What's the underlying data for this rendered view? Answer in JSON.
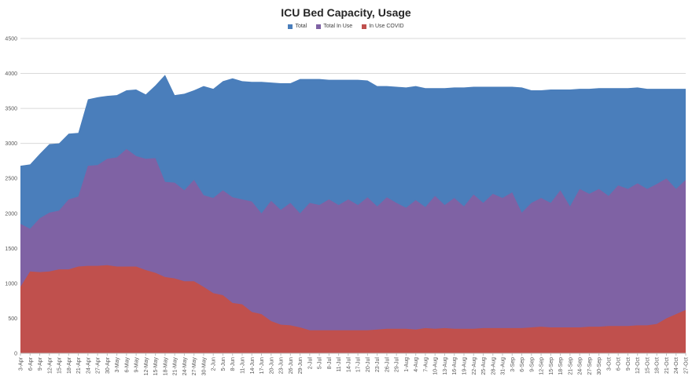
{
  "chart_data": {
    "type": "area",
    "title": "ICU Bed Capacity, Usage",
    "xlabel": "",
    "ylabel": "",
    "ylim": [
      0,
      4500
    ],
    "y_ticks": [
      0,
      500,
      1000,
      1500,
      2000,
      2500,
      3000,
      3500,
      4000,
      4500
    ],
    "grid": true,
    "legend_position": "top",
    "x_tick_labels": [
      "3-Apr",
      "6-Apr",
      "9-Apr",
      "12-Apr",
      "15-Apr",
      "18-Apr",
      "21-Apr",
      "24-Apr",
      "27-Apr",
      "30-Apr",
      "3-May",
      "6-May",
      "9-May",
      "12-May",
      "15-May",
      "18-May",
      "21-May",
      "24-May",
      "27-May",
      "30-May",
      "2-Jun",
      "5-Jun",
      "8-Jun",
      "11-Jun",
      "14-Jun",
      "17-Jun",
      "20-Jun",
      "23-Jun",
      "26-Jun",
      "29-Jun",
      "2-Jul",
      "5-Jul",
      "8-Jul",
      "11-Jul",
      "14-Jul",
      "17-Jul",
      "20-Jul",
      "23-Jul",
      "26-Jul",
      "29-Jul",
      "1-Aug",
      "4-Aug",
      "7-Aug",
      "10-Aug",
      "13-Aug",
      "16-Aug",
      "19-Aug",
      "22-Aug",
      "25-Aug",
      "28-Aug",
      "31-Aug",
      "3-Sep",
      "6-Sep",
      "9-Sep",
      "12-Sep",
      "15-Sep",
      "18-Sep",
      "21-Sep",
      "24-Sep",
      "27-Sep",
      "30-Sep",
      "3-Oct",
      "6-Oct",
      "9-Oct",
      "12-Oct",
      "15-Oct",
      "18-Oct",
      "21-Oct",
      "24-Oct",
      "27-Oct"
    ],
    "series": [
      {
        "name": "Total",
        "color": "#4a7ebb",
        "values": [
          2680,
          2700,
          2850,
          2990,
          3000,
          3140,
          3150,
          3630,
          3660,
          3680,
          3690,
          3760,
          3770,
          3700,
          3830,
          3980,
          3690,
          3710,
          3760,
          3820,
          3780,
          3890,
          3930,
          3890,
          3880,
          3880,
          3870,
          3860,
          3860,
          3920,
          3920,
          3920,
          3910,
          3910,
          3910,
          3910,
          3900,
          3820,
          3820,
          3810,
          3800,
          3820,
          3790,
          3790,
          3790,
          3800,
          3800,
          3810,
          3810,
          3810,
          3810,
          3810,
          3800,
          3760,
          3760,
          3770,
          3770,
          3770,
          3780,
          3780,
          3790,
          3790,
          3790,
          3790,
          3800,
          3780,
          3780,
          3780,
          3780,
          3780
        ]
      },
      {
        "name": "Total In Use",
        "color": "#7f62a4",
        "values": [
          1850,
          1780,
          1930,
          2010,
          2040,
          2200,
          2240,
          2680,
          2690,
          2780,
          2800,
          2920,
          2820,
          2780,
          2790,
          2450,
          2440,
          2330,
          2480,
          2260,
          2220,
          2330,
          2230,
          2200,
          2170,
          2000,
          2180,
          2050,
          2150,
          2000,
          2150,
          2120,
          2200,
          2120,
          2200,
          2120,
          2230,
          2100,
          2230,
          2150,
          2080,
          2190,
          2090,
          2250,
          2120,
          2220,
          2100,
          2270,
          2150,
          2280,
          2220,
          2300,
          2010,
          2150,
          2220,
          2150,
          2330,
          2100,
          2350,
          2280,
          2350,
          2250,
          2400,
          2350,
          2430,
          2350,
          2420,
          2500,
          2350,
          2480
        ]
      },
      {
        "name": "In Use COVID",
        "color": "#c0504d",
        "values": [
          950,
          1170,
          1160,
          1170,
          1200,
          1200,
          1240,
          1250,
          1250,
          1260,
          1240,
          1240,
          1240,
          1190,
          1150,
          1090,
          1070,
          1030,
          1030,
          950,
          860,
          830,
          720,
          700,
          590,
          560,
          460,
          410,
          400,
          370,
          330,
          330,
          330,
          330,
          330,
          330,
          330,
          340,
          350,
          350,
          350,
          340,
          360,
          350,
          360,
          350,
          350,
          350,
          360,
          360,
          360,
          360,
          360,
          370,
          380,
          370,
          370,
          370,
          370,
          380,
          380,
          390,
          390,
          390,
          400,
          400,
          420,
          500,
          560,
          620
        ]
      }
    ]
  }
}
